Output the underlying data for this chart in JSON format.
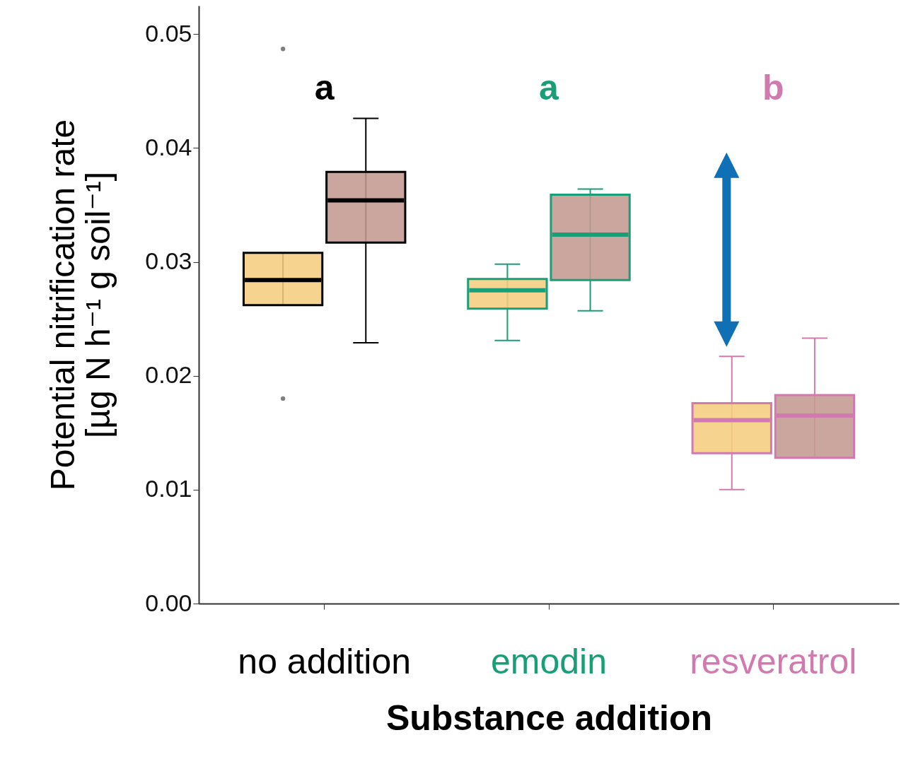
{
  "chart_data": {
    "type": "box",
    "xlabel": "Substance addition",
    "ylabel": "Potential nitrification rate\n[µg N h⁻¹ g soil⁻¹]",
    "categories": [
      "no addition",
      "emodin",
      "resveratrol"
    ],
    "series": [
      {
        "color": "#f5cd7e",
        "colors": [
          "#000000",
          "#1a9e77",
          "#d17aaf"
        ],
        "boxes": [
          {
            "low": 0.0262,
            "q1": 0.0262,
            "median": 0.0284,
            "q3": 0.0308,
            "high": 0.0308,
            "outliers": [
              0.0487,
              0.018
            ]
          },
          {
            "low": 0.0231,
            "q1": 0.0259,
            "median": 0.0275,
            "q3": 0.0285,
            "high": 0.0298
          },
          {
            "low": 0.01,
            "q1": 0.0132,
            "median": 0.0161,
            "q3": 0.0176,
            "high": 0.0217
          }
        ]
      },
      {
        "color": "#c49a91",
        "colors": [
          "#000000",
          "#1a9e77",
          "#d17aaf"
        ],
        "boxes": [
          {
            "low": 0.0229,
            "q1": 0.0317,
            "median": 0.0354,
            "q3": 0.0379,
            "high": 0.0426
          },
          {
            "low": 0.0257,
            "q1": 0.0284,
            "median": 0.0324,
            "q3": 0.0359,
            "high": 0.0364
          },
          {
            "low": 0.0128,
            "q1": 0.0128,
            "median": 0.0165,
            "q3": 0.0183,
            "high": 0.0233
          }
        ]
      }
    ],
    "ylim": [
      0,
      0.0525
    ],
    "yticks": [
      {
        "value": 0,
        "label": "0.00"
      },
      0.01,
      0.02,
      0.03,
      0.04,
      0.05
    ],
    "annotations": [
      "a",
      "a",
      "b"
    ],
    "grid": false
  }
}
